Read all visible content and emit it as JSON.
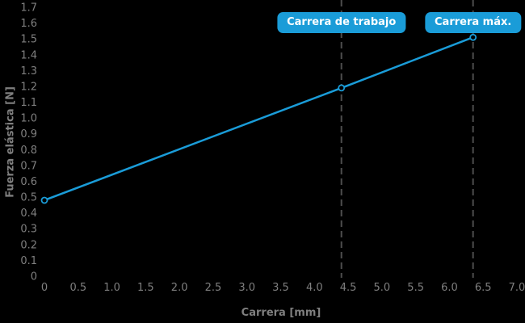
{
  "chart_data": {
    "type": "line",
    "title": "",
    "xlabel": "Carrera [mm]",
    "ylabel": "Fuerza elástica [N]",
    "xlim": [
      0,
      7.0
    ],
    "ylim": [
      0,
      1.7
    ],
    "grid": false,
    "legend_position": "none",
    "xticks": [
      0,
      0.5,
      1.0,
      1.5,
      2.0,
      2.5,
      3.0,
      3.5,
      4.0,
      4.5,
      5.0,
      5.5,
      6.0,
      6.5,
      7.0
    ],
    "xtick_labels": [
      "0",
      "0.5",
      "1.0",
      "1.5",
      "2.0",
      "2.5",
      "3.0",
      "3.5",
      "4.0",
      "4.5",
      "5.0",
      "5.5",
      "6.0",
      "6.5",
      "7.0"
    ],
    "yticks": [
      0,
      0.1,
      0.2,
      0.3,
      0.4,
      0.5,
      0.6,
      0.7,
      0.8,
      0.9,
      1.0,
      1.1,
      1.2,
      1.3,
      1.4,
      1.5,
      1.6,
      1.7
    ],
    "ytick_labels": [
      "0",
      "0.1",
      "0.2",
      "0.3",
      "0.4",
      "0.5",
      "0.6",
      "0.7",
      "0.8",
      "0.9",
      "1.0",
      "1.1",
      "1.2",
      "1.3",
      "1.4",
      "1.5",
      "1.6",
      "1.7"
    ],
    "series": [
      {
        "name": "Fuerza elástica",
        "x": [
          0,
          4.4,
          6.35
        ],
        "y": [
          0.48,
          1.19,
          1.51
        ],
        "color": "#1a9cd8",
        "marker": "open-circle",
        "line_width": 2.5
      }
    ],
    "annotations": [
      {
        "label": "Carrera de trabajo",
        "x": 4.4,
        "line_style": "dashed"
      },
      {
        "label": "Carrera máx.",
        "x": 6.35,
        "line_style": "dashed"
      }
    ]
  },
  "colors": {
    "background": "#000000",
    "accent_blue": "#1a9cd8",
    "tick_label": "#7f7f7f",
    "axis_title": "#7f7f7f",
    "dashed_line": "#4d4d4d",
    "badge_text": "#ffffff",
    "marker_fill": "#000000"
  }
}
